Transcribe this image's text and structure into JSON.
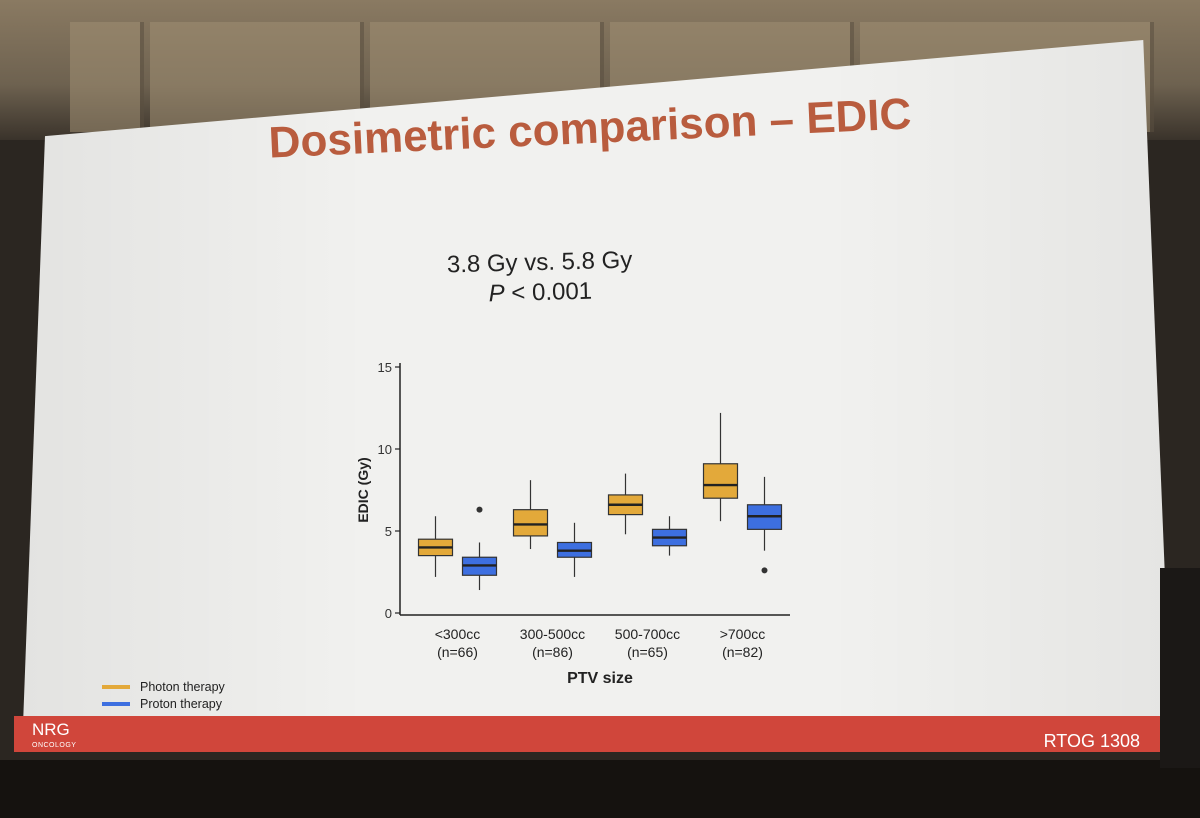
{
  "slide": {
    "title": "Dosimetric comparison – EDIC",
    "subtitle_line1": "3.8 Gy vs. 5.8 Gy",
    "subtitle_p": "P",
    "subtitle_p_rest": " < 0.001",
    "footer_logo": "NRG",
    "footer_logo_sub": "ONCOLOGY",
    "footer_study": "RTOG 1308"
  },
  "legend": [
    {
      "label": "Photon therapy",
      "color": "#e3a93a"
    },
    {
      "label": "Proton therapy",
      "color": "#3d6fe0"
    }
  ],
  "chart_data": {
    "type": "box",
    "xlabel": "PTV size",
    "ylabel": "EDIC (Gy)",
    "ylim": [
      0,
      15
    ],
    "yticks": [
      0,
      5,
      10,
      15
    ],
    "categories": [
      "<300cc\n(n=66)",
      "300-500cc\n(n=86)",
      "500-700cc\n(n=65)",
      ">700cc\n(n=82)"
    ],
    "series": [
      {
        "name": "Photon therapy",
        "color": "#e3a93a",
        "boxes": [
          {
            "min": 2.2,
            "q1": 3.5,
            "median": 4.0,
            "q3": 4.5,
            "max": 5.9,
            "outliers": []
          },
          {
            "min": 3.9,
            "q1": 4.7,
            "median": 5.4,
            "q3": 6.3,
            "max": 8.1,
            "outliers": []
          },
          {
            "min": 4.8,
            "q1": 6.0,
            "median": 6.6,
            "q3": 7.2,
            "max": 8.5,
            "outliers": []
          },
          {
            "min": 5.6,
            "q1": 7.0,
            "median": 7.8,
            "q3": 9.1,
            "max": 12.2,
            "outliers": []
          }
        ]
      },
      {
        "name": "Proton therapy",
        "color": "#3d6fe0",
        "boxes": [
          {
            "min": 1.4,
            "q1": 2.3,
            "median": 2.9,
            "q3": 3.4,
            "max": 4.3,
            "outliers": [
              6.3
            ]
          },
          {
            "min": 2.2,
            "q1": 3.4,
            "median": 3.8,
            "q3": 4.3,
            "max": 5.5,
            "outliers": []
          },
          {
            "min": 3.5,
            "q1": 4.1,
            "median": 4.6,
            "q3": 5.1,
            "max": 5.9,
            "outliers": []
          },
          {
            "min": 3.8,
            "q1": 5.1,
            "median": 5.9,
            "q3": 6.6,
            "max": 8.3,
            "outliers": [
              2.6
            ]
          }
        ]
      }
    ]
  }
}
